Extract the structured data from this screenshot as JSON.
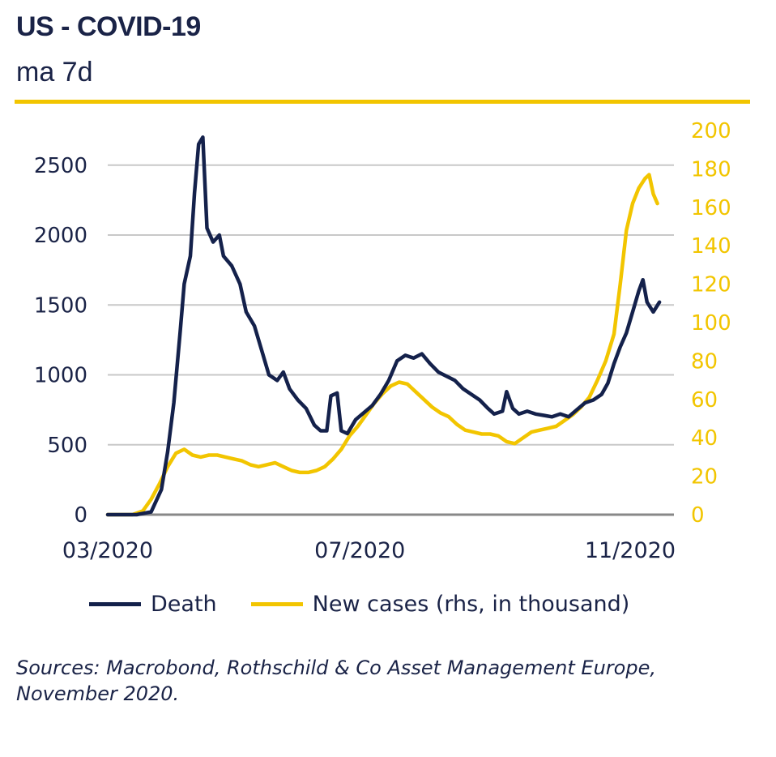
{
  "header": {
    "title": "US - COVID-19",
    "subtitle": "ma 7d"
  },
  "colors": {
    "death": "#14214b",
    "cases": "#f2c500",
    "grid": "#c8c8c8",
    "axis": "#888888"
  },
  "legend": {
    "death_label": "Death",
    "cases_label": "New cases (rhs, in thousand)"
  },
  "source": {
    "line1": "Sources: Macrobond, Rothschild & Co Asset Management Europe,",
    "line2": "November 2020."
  },
  "chart_data": {
    "type": "line",
    "x_ticks": [
      "03/2020",
      "07/2020",
      "11/2020"
    ],
    "y_left_ticks": [
      0,
      500,
      1000,
      1500,
      2000,
      2500
    ],
    "y_left_range": [
      0,
      2800
    ],
    "y_right_ticks": [
      0,
      20,
      40,
      60,
      80,
      100,
      120,
      140,
      160,
      180,
      200
    ],
    "y_right_range": [
      0,
      200
    ],
    "grid": true,
    "series": [
      {
        "name": "Death",
        "axis": "left",
        "points": [
          [
            "2020-03-01",
            0
          ],
          [
            "2020-03-15",
            0
          ],
          [
            "2020-03-22",
            20
          ],
          [
            "2020-03-27",
            180
          ],
          [
            "2020-03-30",
            450
          ],
          [
            "2020-04-02",
            800
          ],
          [
            "2020-04-05",
            1300
          ],
          [
            "2020-04-07",
            1650
          ],
          [
            "2020-04-10",
            1850
          ],
          [
            "2020-04-12",
            2300
          ],
          [
            "2020-04-14",
            2650
          ],
          [
            "2020-04-16",
            2700
          ],
          [
            "2020-04-18",
            2050
          ],
          [
            "2020-04-21",
            1950
          ],
          [
            "2020-04-24",
            2000
          ],
          [
            "2020-04-26",
            1850
          ],
          [
            "2020-04-30",
            1780
          ],
          [
            "2020-05-04",
            1650
          ],
          [
            "2020-05-07",
            1450
          ],
          [
            "2020-05-11",
            1350
          ],
          [
            "2020-05-14",
            1200
          ],
          [
            "2020-05-18",
            1000
          ],
          [
            "2020-05-22",
            960
          ],
          [
            "2020-05-25",
            1020
          ],
          [
            "2020-05-28",
            900
          ],
          [
            "2020-06-01",
            820
          ],
          [
            "2020-06-05",
            760
          ],
          [
            "2020-06-09",
            640
          ],
          [
            "2020-06-12",
            600
          ],
          [
            "2020-06-15",
            600
          ],
          [
            "2020-06-17",
            850
          ],
          [
            "2020-06-20",
            870
          ],
          [
            "2020-06-22",
            600
          ],
          [
            "2020-06-25",
            580
          ],
          [
            "2020-06-29",
            680
          ],
          [
            "2020-07-03",
            730
          ],
          [
            "2020-07-07",
            780
          ],
          [
            "2020-07-11",
            860
          ],
          [
            "2020-07-15",
            960
          ],
          [
            "2020-07-19",
            1100
          ],
          [
            "2020-07-23",
            1140
          ],
          [
            "2020-07-27",
            1120
          ],
          [
            "2020-07-31",
            1150
          ],
          [
            "2020-08-04",
            1080
          ],
          [
            "2020-08-08",
            1020
          ],
          [
            "2020-08-12",
            990
          ],
          [
            "2020-08-16",
            960
          ],
          [
            "2020-08-20",
            900
          ],
          [
            "2020-08-24",
            860
          ],
          [
            "2020-08-28",
            820
          ],
          [
            "2020-09-01",
            760
          ],
          [
            "2020-09-04",
            720
          ],
          [
            "2020-09-08",
            740
          ],
          [
            "2020-09-10",
            880
          ],
          [
            "2020-09-13",
            760
          ],
          [
            "2020-09-16",
            720
          ],
          [
            "2020-09-20",
            740
          ],
          [
            "2020-09-24",
            720
          ],
          [
            "2020-09-28",
            710
          ],
          [
            "2020-10-02",
            700
          ],
          [
            "2020-10-06",
            720
          ],
          [
            "2020-10-10",
            700
          ],
          [
            "2020-10-14",
            750
          ],
          [
            "2020-10-18",
            800
          ],
          [
            "2020-10-22",
            820
          ],
          [
            "2020-10-26",
            860
          ],
          [
            "2020-10-29",
            940
          ],
          [
            "2020-11-01",
            1080
          ],
          [
            "2020-11-04",
            1200
          ],
          [
            "2020-11-07",
            1300
          ],
          [
            "2020-11-10",
            1450
          ],
          [
            "2020-11-13",
            1600
          ],
          [
            "2020-11-15",
            1680
          ],
          [
            "2020-11-17",
            1520
          ],
          [
            "2020-11-20",
            1450
          ],
          [
            "2020-11-23",
            1520
          ]
        ]
      },
      {
        "name": "New cases (rhs, in thousand)",
        "axis": "right",
        "points": [
          [
            "2020-03-01",
            0
          ],
          [
            "2020-03-13",
            0
          ],
          [
            "2020-03-18",
            2
          ],
          [
            "2020-03-22",
            8
          ],
          [
            "2020-03-26",
            16
          ],
          [
            "2020-03-30",
            25
          ],
          [
            "2020-04-03",
            32
          ],
          [
            "2020-04-07",
            34
          ],
          [
            "2020-04-11",
            31
          ],
          [
            "2020-04-15",
            30
          ],
          [
            "2020-04-19",
            31
          ],
          [
            "2020-04-23",
            31
          ],
          [
            "2020-04-27",
            30
          ],
          [
            "2020-05-01",
            29
          ],
          [
            "2020-05-05",
            28
          ],
          [
            "2020-05-09",
            26
          ],
          [
            "2020-05-13",
            25
          ],
          [
            "2020-05-17",
            26
          ],
          [
            "2020-05-21",
            27
          ],
          [
            "2020-05-25",
            25
          ],
          [
            "2020-05-29",
            23
          ],
          [
            "2020-06-02",
            22
          ],
          [
            "2020-06-06",
            22
          ],
          [
            "2020-06-10",
            23
          ],
          [
            "2020-06-14",
            25
          ],
          [
            "2020-06-18",
            29
          ],
          [
            "2020-06-22",
            34
          ],
          [
            "2020-06-26",
            41
          ],
          [
            "2020-06-30",
            46
          ],
          [
            "2020-07-04",
            52
          ],
          [
            "2020-07-08",
            58
          ],
          [
            "2020-07-12",
            63
          ],
          [
            "2020-07-16",
            67
          ],
          [
            "2020-07-20",
            69
          ],
          [
            "2020-07-24",
            68
          ],
          [
            "2020-07-28",
            64
          ],
          [
            "2020-08-01",
            60
          ],
          [
            "2020-08-05",
            56
          ],
          [
            "2020-08-09",
            53
          ],
          [
            "2020-08-13",
            51
          ],
          [
            "2020-08-17",
            47
          ],
          [
            "2020-08-21",
            44
          ],
          [
            "2020-08-25",
            43
          ],
          [
            "2020-08-29",
            42
          ],
          [
            "2020-09-02",
            42
          ],
          [
            "2020-09-06",
            41
          ],
          [
            "2020-09-10",
            38
          ],
          [
            "2020-09-14",
            37
          ],
          [
            "2020-09-18",
            40
          ],
          [
            "2020-09-22",
            43
          ],
          [
            "2020-09-26",
            44
          ],
          [
            "2020-09-30",
            45
          ],
          [
            "2020-10-04",
            46
          ],
          [
            "2020-10-08",
            49
          ],
          [
            "2020-10-12",
            52
          ],
          [
            "2020-10-16",
            56
          ],
          [
            "2020-10-20",
            61
          ],
          [
            "2020-10-24",
            70
          ],
          [
            "2020-10-28",
            80
          ],
          [
            "2020-11-01",
            94
          ],
          [
            "2020-11-04",
            120
          ],
          [
            "2020-11-07",
            148
          ],
          [
            "2020-11-10",
            162
          ],
          [
            "2020-11-13",
            170
          ],
          [
            "2020-11-16",
            175
          ],
          [
            "2020-11-18",
            177
          ],
          [
            "2020-11-20",
            167
          ],
          [
            "2020-11-22",
            162
          ]
        ]
      }
    ]
  }
}
